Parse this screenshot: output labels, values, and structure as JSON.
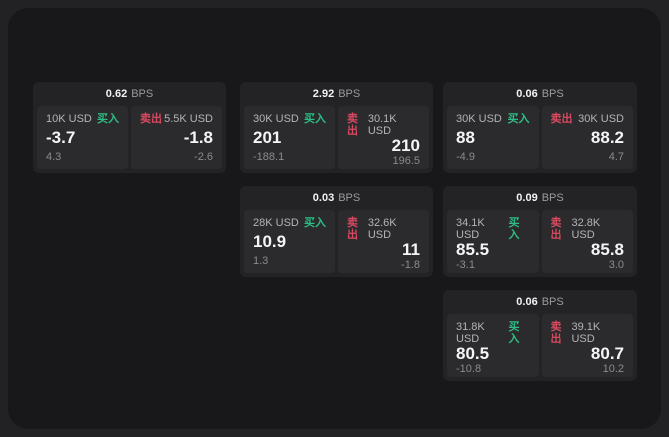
{
  "labels": {
    "bps_unit": "BPS",
    "buy": "买入",
    "sell": "卖出"
  },
  "colors": {
    "buy_accent": "#2ebd85",
    "sell_accent": "#d6495f",
    "page_background": "#222224",
    "panel_background": "#18181a",
    "card_background": "#232325",
    "tile_background": "#2b2b2d"
  },
  "cards": [
    {
      "bps": "0.62",
      "buy": {
        "amount": "10K USD",
        "value": "-3.7",
        "delta": "4.3"
      },
      "sell": {
        "amount": "5.5K USD",
        "value": "-1.8",
        "delta": "-2.6"
      }
    },
    {
      "bps": "2.92",
      "buy": {
        "amount": "30K USD",
        "value": "201",
        "delta": "-188.1"
      },
      "sell": {
        "amount": "30.1K USD",
        "value": "210",
        "delta": "196.5"
      }
    },
    {
      "bps": "0.06",
      "buy": {
        "amount": "30K USD",
        "value": "88",
        "delta": "-4.9"
      },
      "sell": {
        "amount": "30K USD",
        "value": "88.2",
        "delta": "4.7"
      }
    },
    {
      "bps": "0.03",
      "buy": {
        "amount": "28K USD",
        "value": "10.9",
        "delta": "1.3"
      },
      "sell": {
        "amount": "32.6K USD",
        "value": "11",
        "delta": "-1.8"
      }
    },
    {
      "bps": "0.09",
      "buy": {
        "amount": "34.1K USD",
        "value": "85.5",
        "delta": "-3.1"
      },
      "sell": {
        "amount": "32.8K USD",
        "value": "85.8",
        "delta": "3.0"
      }
    },
    {
      "bps": "0.06",
      "buy": {
        "amount": "31.8K USD",
        "value": "80.5",
        "delta": "-10.8"
      },
      "sell": {
        "amount": "39.1K USD",
        "value": "80.7",
        "delta": "10.2"
      }
    }
  ]
}
